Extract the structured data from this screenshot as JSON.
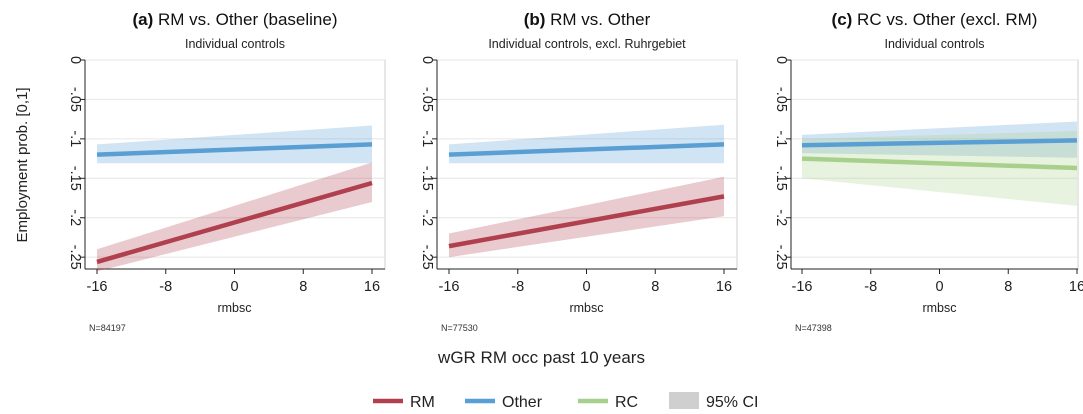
{
  "chart_data": {
    "type": "line",
    "ylabel": "Employment prob. [0,1]",
    "xlabel": "wGR RM occ past 10 years",
    "legend": {
      "placement": "bottom",
      "items": [
        {
          "label": "RM",
          "color": "#b0404e",
          "kind": "line"
        },
        {
          "label": "Other",
          "color": "#5a9fd4",
          "kind": "line"
        },
        {
          "label": "RC",
          "color": "#a8d08d",
          "kind": "line"
        },
        {
          "label": "95% CI",
          "color": "#cfcfcf",
          "kind": "area"
        }
      ]
    },
    "panels": [
      {
        "letter": "(a)",
        "title": " RM vs. Other (baseline)",
        "subtitle": "Individual controls",
        "xaxis_label": "rmbsc",
        "n_label": "N=84197",
        "x_ticks": [
          -16,
          -8,
          0,
          8,
          16
        ],
        "y_ticks": [
          0,
          -0.05,
          -0.1,
          -0.15,
          -0.2,
          -0.25
        ],
        "y_tick_labels": [
          "0",
          "-.05",
          "-.1",
          "-.15",
          "-.2",
          "-.25"
        ],
        "xlim": [
          -16,
          16
        ],
        "ylim": [
          -0.265,
          0
        ],
        "series": [
          {
            "name": "Other",
            "color": "#5a9fd4",
            "x": [
              -16,
              16
            ],
            "y": [
              -0.12,
              -0.107
            ],
            "ci_lower": [
              -0.131,
              -0.131
            ],
            "ci_upper": [
              -0.107,
              -0.083
            ]
          },
          {
            "name": "RM",
            "color": "#b0404e",
            "x": [
              -16,
              16
            ],
            "y": [
              -0.256,
              -0.156
            ],
            "ci_lower": [
              -0.268,
              -0.18
            ],
            "ci_upper": [
              -0.24,
              -0.13
            ]
          }
        ]
      },
      {
        "letter": "(b)",
        "title": " RM vs. Other",
        "subtitle": "Individual controls, excl. Ruhrgebiet",
        "xaxis_label": "rmbsc",
        "n_label": "N=77530",
        "x_ticks": [
          -16,
          -8,
          0,
          8,
          16
        ],
        "y_ticks": [
          0,
          -0.05,
          -0.1,
          -0.15,
          -0.2,
          -0.25
        ],
        "y_tick_labels": [
          "0",
          "-.05",
          "-.1",
          "-.15",
          "-.2",
          "-.25"
        ],
        "xlim": [
          -16,
          16
        ],
        "ylim": [
          -0.265,
          0
        ],
        "series": [
          {
            "name": "Other",
            "color": "#5a9fd4",
            "x": [
              -16,
              16
            ],
            "y": [
              -0.12,
              -0.107
            ],
            "ci_lower": [
              -0.131,
              -0.131
            ],
            "ci_upper": [
              -0.107,
              -0.082
            ]
          },
          {
            "name": "RM",
            "color": "#b0404e",
            "x": [
              -16,
              16
            ],
            "y": [
              -0.236,
              -0.173
            ],
            "ci_lower": [
              -0.25,
              -0.198
            ],
            "ci_upper": [
              -0.22,
              -0.148
            ]
          }
        ]
      },
      {
        "letter": "(c)",
        "title": " RC vs. Other (excl. RM)",
        "subtitle": "Individual controls",
        "xaxis_label": "rmbsc",
        "n_label": "N=47398",
        "x_ticks": [
          -16,
          -8,
          0,
          8,
          16
        ],
        "y_ticks": [
          0,
          -0.05,
          -0.1,
          -0.15,
          -0.2,
          -0.25
        ],
        "y_tick_labels": [
          "0",
          "-.05",
          "-.1",
          "-.15",
          "-.2",
          "-.25"
        ],
        "xlim": [
          -16,
          16
        ],
        "ylim": [
          -0.265,
          0
        ],
        "series": [
          {
            "name": "Other",
            "color": "#5a9fd4",
            "x": [
              -16,
              16
            ],
            "y": [
              -0.108,
              -0.102
            ],
            "ci_lower": [
              -0.118,
              -0.124
            ],
            "ci_upper": [
              -0.095,
              -0.078
            ]
          },
          {
            "name": "RC",
            "color": "#a8d08d",
            "x": [
              -16,
              16
            ],
            "y": [
              -0.125,
              -0.137
            ],
            "ci_lower": [
              -0.15,
              -0.185
            ],
            "ci_upper": [
              -0.1,
              -0.09
            ]
          }
        ]
      }
    ]
  }
}
